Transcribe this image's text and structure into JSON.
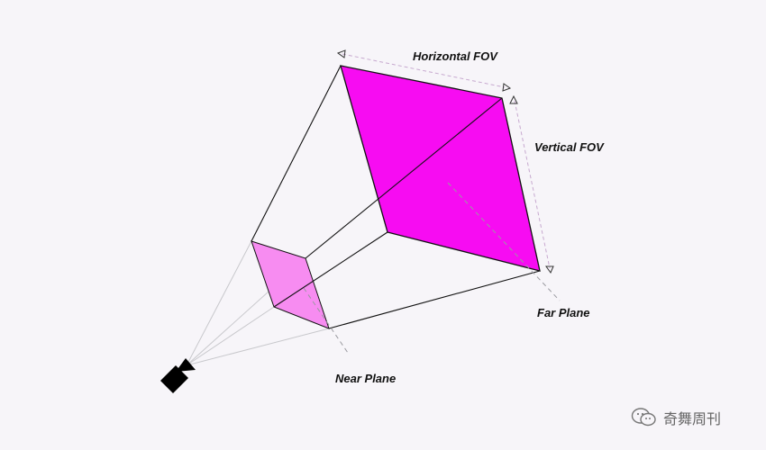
{
  "labels": {
    "horizontal_fov": "Horizontal FOV",
    "vertical_fov": "Vertical FOV",
    "far_plane": "Far Plane",
    "near_plane": "Near Plane"
  },
  "watermark": {
    "text": "奇舞周刊",
    "icon": "wechat-icon"
  },
  "colors": {
    "background": "#f7f5f9",
    "far_plane_fill": "#f70cf2",
    "near_plane_fill": "#f78cf1",
    "frustum_edge": "#111111",
    "guide_line": "#c8c8cc",
    "dimension_line": "#c7a9cf",
    "camera": "#000000"
  },
  "icons": {
    "camera": "camera-icon",
    "dimension_arrow": "arrowhead-icon"
  }
}
